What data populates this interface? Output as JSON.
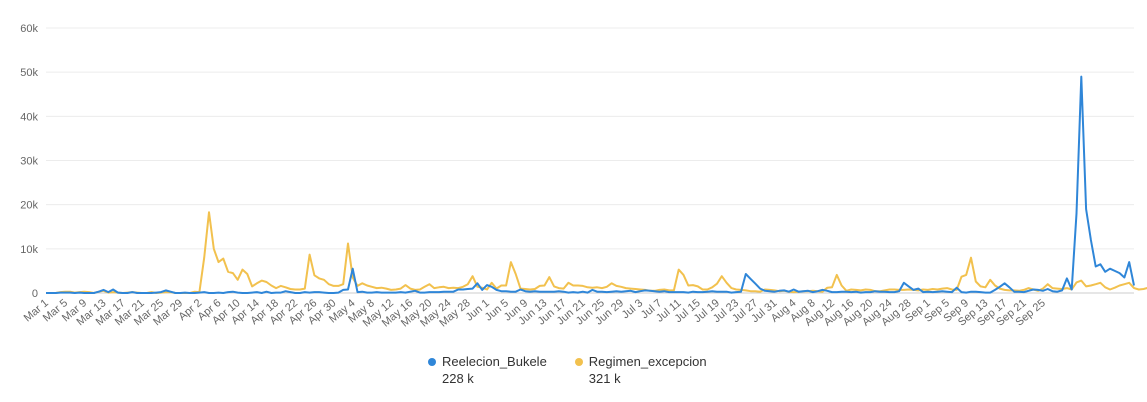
{
  "chart_data": {
    "type": "line",
    "title": "",
    "xlabel": "",
    "ylabel": "",
    "ylim": [
      0,
      60000
    ],
    "yticks": [
      "0",
      "10k",
      "20k",
      "30k",
      "40k",
      "50k",
      "60k"
    ],
    "xtick_labels": [
      "Mar 1",
      "Mar 5",
      "Mar 9",
      "Mar 13",
      "Mar 17",
      "Mar 21",
      "Mar 25",
      "Mar 29",
      "Apr 2",
      "Apr 6",
      "Apr 10",
      "Apr 14",
      "Apr 18",
      "Apr 22",
      "Apr 26",
      "Apr 30",
      "May 4",
      "May 8",
      "May 12",
      "May 16",
      "May 20",
      "May 24",
      "May 28",
      "Jun 1",
      "Jun 5",
      "Jun 9",
      "Jun 13",
      "Jun 17",
      "Jun 21",
      "Jun 25",
      "Jun 29",
      "Jul 3",
      "Jul 7",
      "Jul 11",
      "Jul 15",
      "Jul 19",
      "Jul 23",
      "Jul 27",
      "Jul 31",
      "Aug 4",
      "Aug 8",
      "Aug 12",
      "Aug 16",
      "Aug 20",
      "Aug 24",
      "Aug 28",
      "Sep 1",
      "Sep 5",
      "Sep 9",
      "Sep 13",
      "Sep 17",
      "Sep 21",
      "Sep 25"
    ],
    "grid": true,
    "legend_position": "bottom-center",
    "series": [
      {
        "name": "Reelecion_Bukele",
        "total": "228 k",
        "color": "#2f86d8",
        "values": [
          0,
          0,
          0,
          100,
          100,
          100,
          0,
          100,
          0,
          0,
          0,
          300,
          700,
          200,
          800,
          100,
          0,
          0,
          200,
          0,
          0,
          0,
          0,
          100,
          200,
          600,
          300,
          0,
          0,
          100,
          0,
          0,
          100,
          200,
          0,
          0,
          100,
          0,
          200,
          300,
          100,
          0,
          0,
          100,
          200,
          0,
          300,
          0,
          100,
          100,
          400,
          200,
          0,
          0,
          200,
          100,
          200,
          200,
          100,
          0,
          0,
          100,
          700,
          800,
          5500,
          200,
          300,
          100,
          100,
          200,
          100,
          100,
          100,
          100,
          200,
          100,
          300,
          500,
          100,
          100,
          200,
          200,
          200,
          300,
          300,
          300,
          800,
          800,
          900,
          1000,
          2200,
          700,
          1800,
          1400,
          700,
          400,
          400,
          300,
          300,
          800,
          400,
          300,
          400,
          300,
          300,
          300,
          300,
          400,
          300,
          100,
          200,
          100,
          300,
          100,
          700,
          300,
          300,
          200,
          300,
          400,
          300,
          400,
          500,
          200,
          400,
          600,
          500,
          400,
          300,
          400,
          200,
          200,
          200,
          200,
          100,
          300,
          200,
          200,
          300,
          400,
          300,
          300,
          300,
          100,
          200,
          300,
          4300,
          3200,
          2100,
          1000,
          500,
          400,
          300,
          500,
          600,
          300,
          800,
          300,
          400,
          500,
          200,
          400,
          700,
          500,
          200,
          200,
          300,
          300,
          200,
          300,
          100,
          200,
          200,
          400,
          300,
          300,
          200,
          200,
          400,
          2300,
          1500,
          700,
          1000,
          200,
          300,
          200,
          300,
          400,
          300,
          200,
          1200,
          200,
          100,
          300,
          300,
          200,
          100,
          100,
          700,
          1400,
          2200,
          1300,
          300,
          300,
          200,
          500,
          800,
          700,
          500,
          900,
          400,
          300,
          600,
          3300,
          800,
          18000,
          49000,
          19000,
          12000,
          6000,
          6500,
          4800,
          5500,
          5000,
          4500,
          3500,
          7000,
          1700
        ]
      },
      {
        "name": "Regimen_excepcion",
        "total": "321 k",
        "color": "#f2c14e",
        "values": [
          0,
          0,
          0,
          200,
          300,
          300,
          100,
          200,
          300,
          200,
          0,
          300,
          500,
          100,
          200,
          100,
          0,
          100,
          200,
          100,
          0,
          0,
          200,
          0,
          100,
          200,
          200,
          0,
          0,
          0,
          0,
          300,
          200,
          8000,
          18300,
          10000,
          7000,
          7800,
          4800,
          4500,
          3000,
          5300,
          4300,
          1500,
          2200,
          2800,
          2500,
          1700,
          1100,
          1600,
          1300,
          900,
          800,
          800,
          1000,
          8700,
          4000,
          3300,
          3000,
          2000,
          1600,
          1600,
          2000,
          11200,
          3500,
          1600,
          2200,
          1700,
          1400,
          1100,
          1200,
          1000,
          700,
          800,
          1000,
          1800,
          1000,
          700,
          800,
          1400,
          2000,
          1100,
          1300,
          1400,
          1100,
          1200,
          1100,
          1400,
          2000,
          3800,
          1400,
          1200,
          800,
          2300,
          1000,
          1700,
          1700,
          7000,
          4300,
          1000,
          900,
          800,
          900,
          1600,
          1700,
          3600,
          1500,
          1100,
          1000,
          2300,
          1700,
          1700,
          1600,
          1300,
          1200,
          1300,
          1100,
          1400,
          2200,
          1600,
          1400,
          1100,
          1000,
          900,
          800,
          700,
          500,
          500,
          700,
          800,
          600,
          600,
          5300,
          4100,
          1700,
          1800,
          1500,
          800,
          800,
          1300,
          2100,
          3800,
          2300,
          1100,
          800,
          700,
          600,
          400,
          400,
          300,
          800,
          700,
          600,
          400,
          500,
          300,
          200,
          300,
          400,
          400,
          500,
          400,
          300,
          1200,
          1300,
          4100,
          1700,
          500,
          800,
          700,
          600,
          800,
          700,
          400,
          400,
          600,
          800,
          800,
          700,
          700,
          800,
          700,
          600,
          800,
          700,
          900,
          800,
          1000,
          1100,
          800,
          700,
          3700,
          4100,
          8000,
          2600,
          1500,
          1300,
          3000,
          1700,
          1000,
          700,
          600,
          600,
          500,
          700,
          1100,
          800,
          500,
          1000,
          2000,
          1100,
          1000,
          900,
          1100,
          800,
          2400,
          2800,
          1500,
          1700,
          2000,
          2300,
          1300,
          800,
          1200,
          1700,
          2000,
          2300,
          1100,
          800,
          900,
          1200,
          700,
          700,
          600,
          500,
          400,
          500,
          1000,
          800
        ]
      }
    ]
  }
}
